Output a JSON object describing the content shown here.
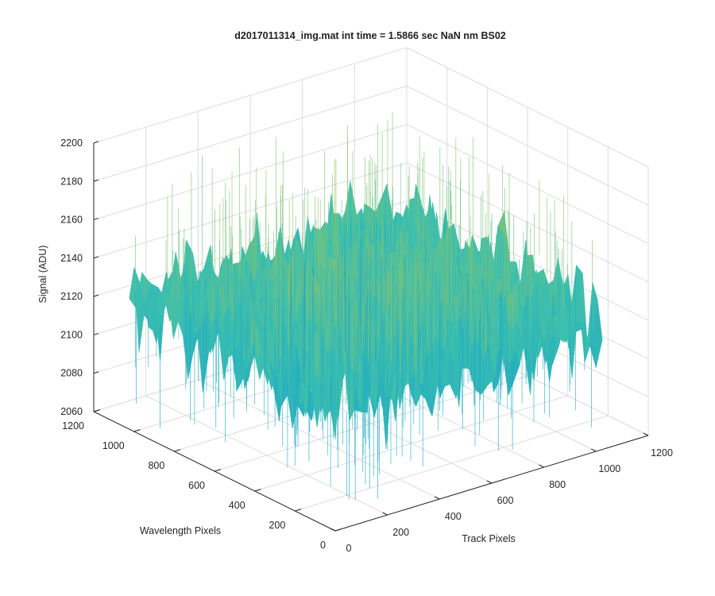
{
  "chart_data": {
    "type": "surface",
    "title": "d2017011314_img.mat int time = 1.5866 sec  NaN nm BS02",
    "xlabel": "Track Pixels",
    "ylabel": "Wavelength Pixels",
    "zlabel": "Signal (ADU)",
    "xlim": [
      0,
      1200
    ],
    "ylim": [
      0,
      1200
    ],
    "zlim": [
      2060,
      2200
    ],
    "xticks": [
      "0",
      "200",
      "400",
      "600",
      "800",
      "1000",
      "1200"
    ],
    "yticks": [
      "0",
      "200",
      "400",
      "600",
      "800",
      "1000",
      "1200"
    ],
    "zticks": [
      "2060",
      "2080",
      "2100",
      "2120",
      "2140",
      "2160",
      "2180",
      "2200"
    ],
    "data_extent": {
      "x": [
        0,
        1024
      ],
      "y": [
        0,
        1024
      ]
    },
    "signal_mean": 2132,
    "signal_noise_range": [
      2065,
      2195
    ],
    "colormap": [
      "#0072bd",
      "#1aa6c9",
      "#3cbfae",
      "#8cc36a",
      "#e6c23a"
    ],
    "grid": true
  }
}
